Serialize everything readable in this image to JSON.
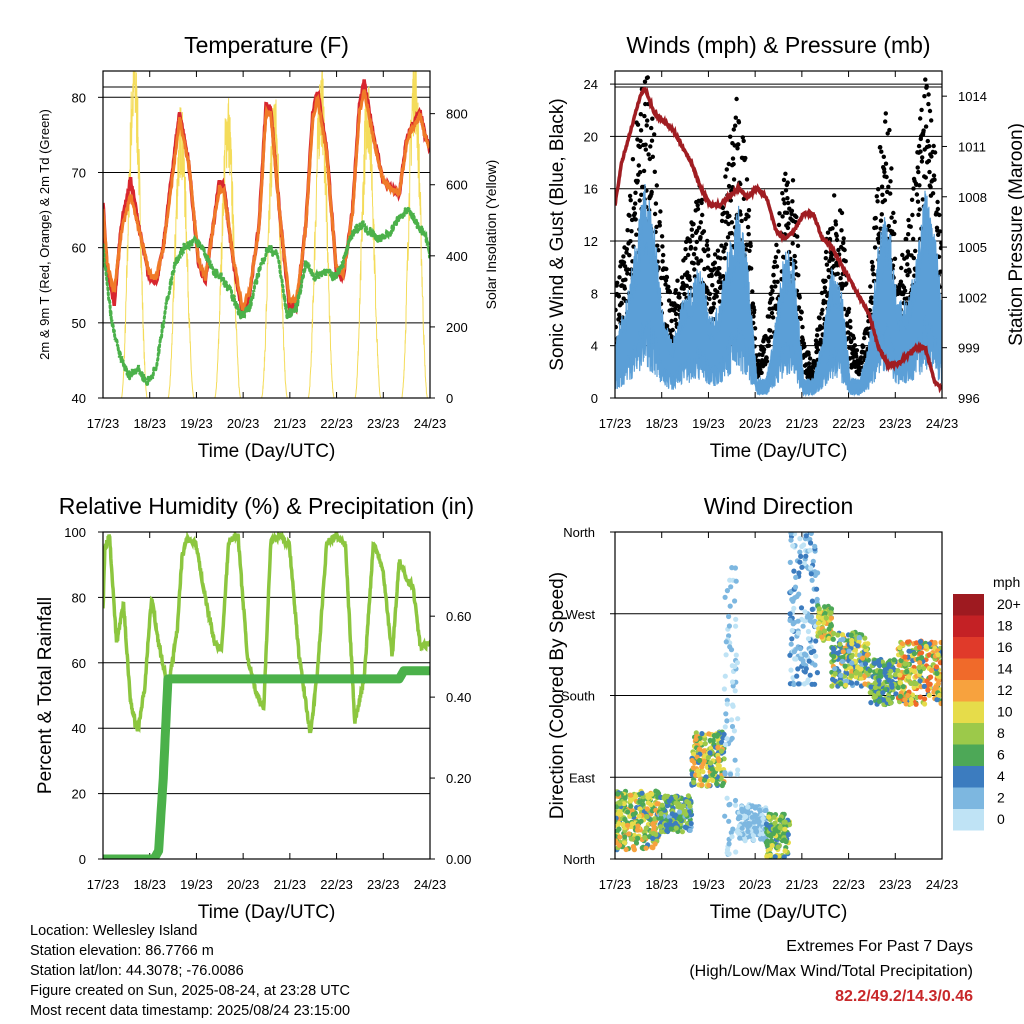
{
  "colors": {
    "temp2m": "#d8262e",
    "temp9m": "#f07a28",
    "dew": "#4bb14a",
    "solar": "#f4dc5a",
    "gust": "#000000",
    "wind": "#5b9fd7",
    "pressure": "#a01d22",
    "rh": "#8cc63f",
    "precip": "#4bb14a",
    "extremes": "#c8282a"
  },
  "chart_data": [
    {
      "id": "temperature",
      "type": "line",
      "title": "Temperature (F)",
      "xlabel": "Time (Day/UTC)",
      "ylabel": "2m & 9m T (Red, Orange) & 2m Td (Green)",
      "ylabel_right": "Solar Insolation (Yellow)",
      "xlim": [
        17.96,
        24.96
      ],
      "ylim": [
        40,
        83.5
      ],
      "ylim_right": [
        0,
        920
      ],
      "x_tick_labels": [
        "17/23",
        "18/23",
        "19/23",
        "20/23",
        "21/23",
        "22/23",
        "23/23",
        "24/23"
      ],
      "y_ticks": [
        40,
        50,
        60,
        70,
        80
      ],
      "y_ticks_right": [
        0,
        200,
        400,
        600,
        800
      ],
      "series": [
        {
          "name": "2m T",
          "color": "#d8262e",
          "x": [
            17.96,
            18.05,
            18.2,
            18.35,
            18.55,
            18.75,
            18.95,
            19.1,
            19.25,
            19.4,
            19.6,
            19.8,
            20.0,
            20.15,
            20.3,
            20.45,
            20.55,
            20.75,
            20.95,
            21.1,
            21.3,
            21.45,
            21.55,
            21.75,
            21.95,
            22.1,
            22.3,
            22.45,
            22.55,
            22.75,
            22.95,
            23.1,
            23.3,
            23.45,
            23.55,
            23.75,
            23.95,
            24.1,
            24.3,
            24.45,
            24.55,
            24.75,
            24.85,
            24.96
          ],
          "values": [
            66,
            57,
            52.5,
            63,
            69,
            62,
            56,
            55.5,
            60,
            68,
            78,
            71,
            58,
            55.5,
            62,
            69,
            68,
            58,
            51,
            54,
            63,
            79,
            78.5,
            64,
            52,
            52,
            63,
            78,
            81,
            73,
            57,
            56,
            65,
            79,
            82,
            75,
            69,
            68,
            67,
            74,
            76,
            78,
            75,
            73
          ]
        },
        {
          "name": "9m T",
          "color": "#f07a28",
          "x": [
            17.96,
            18.05,
            18.2,
            18.35,
            18.55,
            18.75,
            18.95,
            19.1,
            19.25,
            19.4,
            19.6,
            19.8,
            20.0,
            20.15,
            20.3,
            20.45,
            20.55,
            20.75,
            20.95,
            21.1,
            21.3,
            21.45,
            21.55,
            21.75,
            21.95,
            22.1,
            22.3,
            22.45,
            22.55,
            22.75,
            22.95,
            23.1,
            23.3,
            23.45,
            23.55,
            23.75,
            23.95,
            24.1,
            24.3,
            24.45,
            24.55,
            24.75,
            24.85,
            24.96
          ],
          "values": [
            65,
            58,
            54,
            62,
            67,
            62,
            56.5,
            56,
            60,
            67,
            77,
            71,
            58.5,
            56,
            62,
            68,
            67.5,
            58.5,
            52,
            54.5,
            62.5,
            78,
            78,
            64,
            53,
            53,
            62.5,
            77,
            80,
            72.5,
            57.5,
            56.5,
            64.5,
            78,
            81,
            74.5,
            69,
            68,
            67,
            73.5,
            75.5,
            77.5,
            75,
            73
          ]
        },
        {
          "name": "2m Td",
          "color": "#4bb14a",
          "x": [
            17.96,
            18.05,
            18.15,
            18.3,
            18.5,
            18.7,
            18.9,
            19.1,
            19.3,
            19.5,
            19.7,
            19.9,
            20.1,
            20.3,
            20.5,
            20.7,
            20.9,
            21.1,
            21.3,
            21.5,
            21.7,
            21.9,
            22.1,
            22.3,
            22.5,
            22.7,
            22.9,
            23.1,
            23.3,
            23.5,
            23.7,
            23.9,
            24.1,
            24.3,
            24.5,
            24.7,
            24.85,
            24.96
          ],
          "values": [
            60,
            55,
            50,
            46,
            43,
            44,
            42,
            44,
            52,
            58,
            60,
            61,
            60,
            57,
            56,
            54,
            51,
            52,
            57,
            60,
            59,
            51,
            52,
            58,
            56,
            57,
            56,
            58,
            62,
            63,
            62,
            61,
            62,
            64,
            65,
            63,
            62,
            59
          ]
        },
        {
          "name": "Solar",
          "color": "#f4dc5a",
          "axis": "right",
          "peaks_x": [
            18.63,
            19.63,
            20.63,
            21.63,
            22.63,
            23.63,
            24.63
          ],
          "peaks": [
            880,
            730,
            760,
            770,
            830,
            810,
            880
          ]
        }
      ]
    },
    {
      "id": "winds",
      "type": "line",
      "title": "Winds (mph) & Pressure (mb)",
      "xlabel": "Time (Day/UTC)",
      "ylabel": "Sonic Wind & Gust (Blue, Black)",
      "ylabel_right": "Station Pressure (Maroon)",
      "xlim": [
        17.96,
        24.96
      ],
      "ylim": [
        0,
        25
      ],
      "ylim_right": [
        996,
        1015.5
      ],
      "x_tick_labels": [
        "17/23",
        "18/23",
        "19/23",
        "20/23",
        "21/23",
        "22/23",
        "23/23",
        "24/23"
      ],
      "y_ticks": [
        0,
        4,
        8,
        12,
        16,
        20,
        24
      ],
      "y_ticks_right": [
        996,
        999,
        1002,
        1005,
        1008,
        1011,
        1014
      ],
      "series": [
        {
          "name": "Gust",
          "color": "#000000",
          "x": [
            17.96,
            18.2,
            18.4,
            18.6,
            18.8,
            19.0,
            19.2,
            19.4,
            19.6,
            19.8,
            20.0,
            20.2,
            20.4,
            20.6,
            20.8,
            21.0,
            21.2,
            21.4,
            21.6,
            21.8,
            22.0,
            22.2,
            22.4,
            22.6,
            22.8,
            23.0,
            23.2,
            23.4,
            23.6,
            23.8,
            24.0,
            24.2,
            24.4,
            24.6,
            24.8,
            24.96
          ],
          "values": [
            6,
            9,
            15,
            19,
            15,
            8,
            5,
            8,
            10,
            12,
            7,
            9,
            14,
            17,
            12,
            2,
            4,
            8,
            14,
            12,
            3,
            2,
            6,
            12,
            11,
            4,
            2,
            5,
            14,
            16,
            8,
            9,
            13,
            19,
            14,
            8
          ]
        },
        {
          "name": "Sonic Wind",
          "color": "#5b9fd7",
          "x": [
            17.96,
            18.2,
            18.4,
            18.6,
            18.8,
            19.0,
            19.2,
            19.4,
            19.6,
            19.8,
            20.0,
            20.2,
            20.4,
            20.6,
            20.8,
            21.0,
            21.2,
            21.4,
            21.6,
            21.8,
            22.0,
            22.2,
            22.4,
            22.6,
            22.8,
            23.0,
            23.2,
            23.4,
            23.6,
            23.8,
            24.0,
            24.2,
            24.4,
            24.6,
            24.8,
            24.96
          ],
          "values": [
            3,
            5,
            8,
            11,
            9,
            4,
            3,
            5,
            6,
            7,
            4,
            5,
            8,
            10,
            7,
            1,
            1,
            4,
            8,
            7,
            1,
            1,
            3,
            7,
            6,
            1,
            1,
            3,
            8,
            10,
            5,
            5,
            7,
            11,
            9,
            5
          ]
        },
        {
          "name": "Pressure",
          "color": "#a01d22",
          "axis": "right",
          "x": [
            17.96,
            18.1,
            18.3,
            18.5,
            18.6,
            18.8,
            19.0,
            19.2,
            19.4,
            19.6,
            19.8,
            20.0,
            20.2,
            20.4,
            20.6,
            20.8,
            21.0,
            21.2,
            21.4,
            21.6,
            21.8,
            22.0,
            22.2,
            22.4,
            22.6,
            22.8,
            23.0,
            23.2,
            23.4,
            23.6,
            23.8,
            24.0,
            24.2,
            24.4,
            24.6,
            24.8,
            24.96
          ],
          "values": [
            1007.5,
            1010,
            1012,
            1014,
            1014.5,
            1013,
            1012.5,
            1012,
            1011,
            1010,
            1008.5,
            1007.5,
            1007.5,
            1008,
            1008.5,
            1008,
            1008.5,
            1008,
            1006,
            1005.5,
            1006,
            1007,
            1007,
            1005.5,
            1005,
            1004,
            1003,
            1002,
            1001,
            999,
            998,
            998,
            998.5,
            999,
            999,
            997,
            996.5
          ]
        }
      ]
    },
    {
      "id": "humidity",
      "type": "line",
      "title": "Relative Humidity (%) & Precipitation (in)",
      "xlabel": "Time (Day/UTC)",
      "ylabel": "Percent & Total Rainfall",
      "xlim": [
        17.96,
        24.96
      ],
      "ylim": [
        0,
        100
      ],
      "ylim_right": [
        0,
        0.808
      ],
      "x_tick_labels": [
        "17/23",
        "18/23",
        "19/23",
        "20/23",
        "21/23",
        "22/23",
        "23/23",
        "24/23"
      ],
      "y_ticks": [
        0,
        20,
        40,
        60,
        80,
        100
      ],
      "y_ticks_right": [
        "0.00",
        "0.20",
        "0.40",
        "0.60"
      ],
      "series": [
        {
          "name": "RH",
          "color": "#8cc63f",
          "x": [
            17.96,
            18.0,
            18.1,
            18.25,
            18.4,
            18.55,
            18.7,
            18.85,
            19.0,
            19.15,
            19.35,
            19.55,
            19.65,
            19.75,
            19.95,
            20.15,
            20.35,
            20.5,
            20.65,
            20.85,
            21.05,
            21.25,
            21.4,
            21.55,
            21.75,
            21.95,
            22.15,
            22.4,
            22.55,
            22.75,
            22.95,
            23.15,
            23.35,
            23.55,
            23.75,
            23.95,
            24.15,
            24.3,
            24.45,
            24.6,
            24.75,
            24.96
          ],
          "values": [
            76,
            95,
            99,
            66,
            78,
            48,
            39,
            52,
            80,
            66,
            52,
            70,
            92,
            98,
            96,
            80,
            66,
            64,
            97,
            99,
            62,
            50,
            46,
            97,
            99,
            96,
            63,
            38,
            57,
            97,
            99,
            96,
            42,
            55,
            97,
            89,
            62,
            91,
            86,
            83,
            65,
            66
          ]
        },
        {
          "name": "Precipitation",
          "color": "#4bb14a",
          "axis": "right",
          "x": [
            17.96,
            19.05,
            19.15,
            19.25,
            19.35,
            24.3,
            24.4,
            24.96
          ],
          "values": [
            0,
            0,
            0.02,
            0.2,
            0.445,
            0.445,
            0.465,
            0.465
          ]
        }
      ]
    },
    {
      "id": "direction",
      "type": "scatter",
      "title": "Wind Direction",
      "xlabel": "Time (Day/UTC)",
      "ylabel": "Direction (Colored By Speed)",
      "xlim": [
        17.96,
        24.96
      ],
      "ylim": [
        0,
        360
      ],
      "x_tick_labels": [
        "17/23",
        "18/23",
        "19/23",
        "20/23",
        "21/23",
        "22/23",
        "23/23",
        "24/23"
      ],
      "y_tick_labels": [
        "North",
        "East",
        "South",
        "West",
        "North"
      ],
      "colorbar_title": "mph",
      "colorbar_labels": [
        "20+",
        "18",
        "16",
        "14",
        "12",
        "10",
        "8",
        "6",
        "4",
        "2",
        "0"
      ],
      "colorbar_colors": [
        "#9e1a20",
        "#c42125",
        "#e03a2a",
        "#f06a2a",
        "#f7a23e",
        "#e6dc4a",
        "#9cc94a",
        "#4da857",
        "#3c7cbf",
        "#7db7e0",
        "#bfe3f5"
      ],
      "segments": [
        {
          "x": [
            17.96,
            18.9
          ],
          "dir": [
            10,
            75
          ],
          "spd": [
            4,
            13
          ]
        },
        {
          "x": [
            18.9,
            19.6
          ],
          "dir": [
            30,
            70
          ],
          "spd": [
            2,
            9
          ]
        },
        {
          "x": [
            19.6,
            20.3
          ],
          "dir": [
            80,
            140
          ],
          "spd": [
            3,
            13
          ]
        },
        {
          "x": [
            20.3,
            20.6
          ],
          "dir": [
            0,
            330
          ],
          "spd": [
            0,
            2
          ]
        },
        {
          "x": [
            20.6,
            21.2
          ],
          "dir": [
            20,
            60
          ],
          "spd": [
            0,
            3
          ]
        },
        {
          "x": [
            21.2,
            21.7
          ],
          "dir": [
            0,
            50
          ],
          "spd": [
            4,
            10
          ]
        },
        {
          "x": [
            21.7,
            22.3
          ],
          "dir": [
            190,
            360
          ],
          "spd": [
            0,
            5
          ]
        },
        {
          "x": [
            22.3,
            22.6
          ],
          "dir": [
            240,
            280
          ],
          "spd": [
            5,
            12
          ]
        },
        {
          "x": [
            22.6,
            23.4
          ],
          "dir": [
            190,
            250
          ],
          "spd": [
            2,
            12
          ]
        },
        {
          "x": [
            23.4,
            24.0
          ],
          "dir": [
            170,
            220
          ],
          "spd": [
            3,
            9
          ]
        },
        {
          "x": [
            24.0,
            24.96
          ],
          "dir": [
            170,
            240
          ],
          "spd": [
            4,
            15
          ]
        }
      ]
    }
  ],
  "info": {
    "location": "Location: Wellesley Island",
    "elevation": "Station elevation: 86.7766 m",
    "latlon": "Station lat/lon: 44.3078; -76.0086",
    "created": "Figure created on Sun, 2025-08-24, at 23:28 UTC",
    "latest": "Most recent data timestamp: 2025/08/24 23:15:00"
  },
  "extremes": {
    "title": "Extremes For Past 7 Days",
    "subtitle": "(High/Low/Max Wind/Total Precipitation)",
    "values": "82.2/49.2/14.3/0.46"
  }
}
